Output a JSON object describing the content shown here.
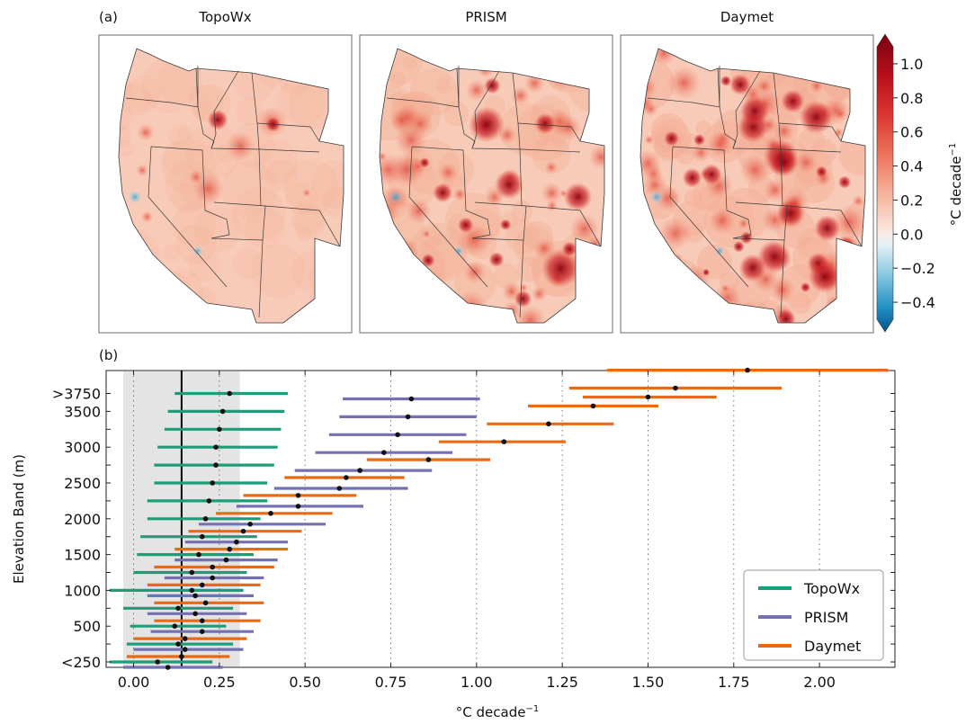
{
  "panel_a": {
    "label": "(a)",
    "maps": [
      {
        "name": "TopoWx",
        "intensity": 0.12,
        "hot_spots": 0.05
      },
      {
        "name": "PRISM",
        "intensity": 0.55,
        "hot_spots": 0.35
      },
      {
        "name": "Daymet",
        "intensity": 0.75,
        "hot_spots": 0.65
      }
    ],
    "colorbar": {
      "label": "°C decade",
      "label_exponent": "−1",
      "ticks": [
        "1.0",
        "0.8",
        "0.6",
        "0.4",
        "0.2",
        "0.0",
        "−0.2",
        "−0.4"
      ],
      "range": [
        -0.5,
        1.1
      ]
    }
  },
  "panel_b": {
    "label": "(b)"
  },
  "chart_data": {
    "type": "scatter",
    "xlabel": "°C decade",
    "xlabel_exponent": "−1",
    "ylabel": "Elevation Band (m)",
    "xlim": [
      -0.08,
      2.22
    ],
    "xticks": [
      "0.00",
      "0.25",
      "0.50",
      "0.75",
      "1.00",
      "1.25",
      "1.50",
      "1.75",
      "2.00"
    ],
    "xtick_values": [
      0,
      0.25,
      0.5,
      0.75,
      1.0,
      1.25,
      1.5,
      1.75,
      2.0
    ],
    "yticks": [
      "<250",
      "500",
      "1000",
      "1500",
      "2000",
      "2500",
      "3000",
      "3500",
      ">3750"
    ],
    "ytick_bands": [
      0,
      2,
      4,
      6,
      8,
      10,
      12,
      14,
      15
    ],
    "band_count": 16,
    "reference_line_x": 0.14,
    "shaded_range": [
      -0.03,
      0.31
    ],
    "grid": "vertical dotted",
    "legend_position": "bottom-right",
    "series": [
      {
        "name": "TopoWx",
        "color": "#1b9e77",
        "center": [
          0.07,
          0.13,
          0.12,
          0.13,
          0.17,
          0.17,
          0.19,
          0.2,
          0.21,
          0.22,
          0.23,
          0.24,
          0.24,
          0.25,
          0.26,
          0.28
        ],
        "low": [
          -0.07,
          -0.02,
          -0.01,
          -0.03,
          -0.07,
          0.0,
          0.01,
          0.02,
          0.04,
          0.04,
          0.06,
          0.06,
          0.07,
          0.09,
          0.1,
          0.12
        ],
        "high": [
          0.23,
          0.29,
          0.27,
          0.29,
          0.32,
          0.33,
          0.35,
          0.36,
          0.37,
          0.39,
          0.39,
          0.41,
          0.42,
          0.43,
          0.44,
          0.45
        ]
      },
      {
        "name": "PRISM",
        "color": "#7570b3",
        "center": [
          0.1,
          0.15,
          0.2,
          0.18,
          0.18,
          0.23,
          0.27,
          0.3,
          0.34,
          0.48,
          0.6,
          0.66,
          0.73,
          0.77,
          0.8,
          0.81
        ],
        "low": [
          -0.03,
          0.0,
          0.05,
          0.04,
          0.04,
          0.09,
          0.12,
          0.15,
          0.19,
          0.3,
          0.41,
          0.47,
          0.53,
          0.57,
          0.6,
          0.61
        ],
        "high": [
          0.26,
          0.32,
          0.35,
          0.33,
          0.35,
          0.38,
          0.42,
          0.45,
          0.56,
          0.67,
          0.8,
          0.87,
          0.93,
          0.97,
          1.0,
          1.01
        ]
      },
      {
        "name": "Daymet",
        "color": "#e86a14",
        "center": [
          0.14,
          0.15,
          0.2,
          0.21,
          0.2,
          0.23,
          0.28,
          0.32,
          0.4,
          0.48,
          0.62,
          0.86,
          1.08,
          1.21,
          1.34,
          1.5,
          1.58,
          1.79
        ],
        "low": [
          -0.02,
          0.0,
          0.06,
          0.06,
          0.04,
          0.06,
          0.12,
          0.16,
          0.24,
          0.32,
          0.44,
          0.68,
          0.89,
          1.03,
          1.15,
          1.31,
          1.27,
          1.38
        ],
        "high": [
          0.28,
          0.33,
          0.37,
          0.38,
          0.37,
          0.41,
          0.45,
          0.49,
          0.58,
          0.65,
          0.79,
          1.04,
          1.26,
          1.4,
          1.53,
          1.7,
          1.89,
          2.2
        ],
        "bands": [
          0,
          1,
          2,
          3,
          4,
          5,
          6,
          7,
          8,
          9,
          10,
          11,
          12,
          13,
          14,
          14.5,
          15,
          16
        ]
      }
    ]
  }
}
